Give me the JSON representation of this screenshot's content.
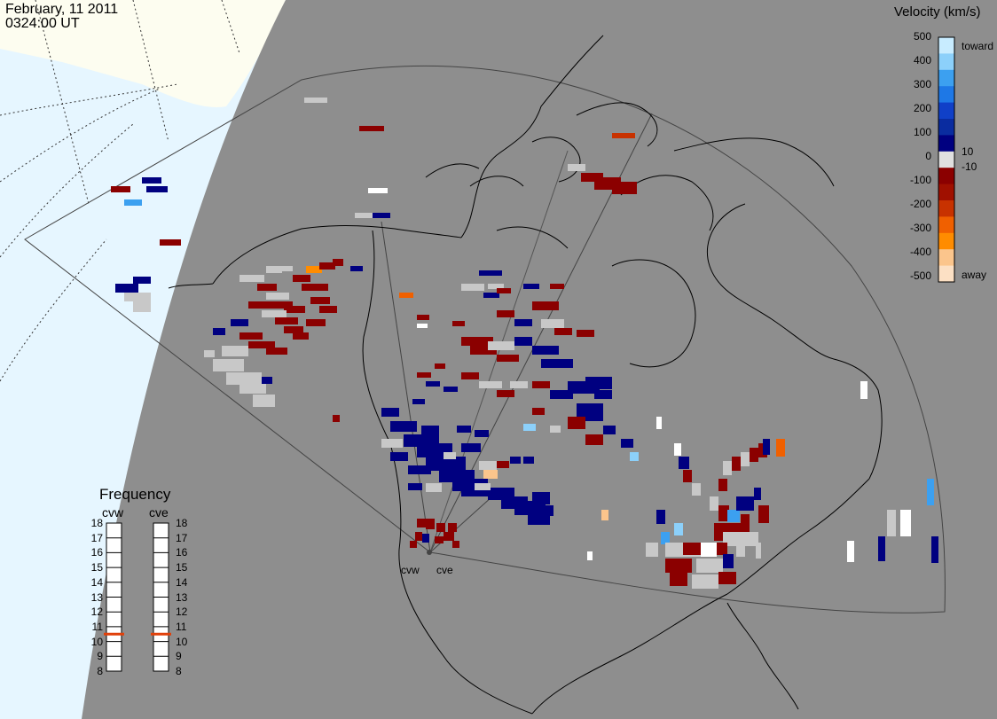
{
  "header": {
    "date": "February, 11 2011",
    "time": "0324:00 UT"
  },
  "radar_sites": [
    {
      "code": "cvw",
      "label": "cvw"
    },
    {
      "code": "cve",
      "label": "cve"
    }
  ],
  "velocity_scale": {
    "title": "Velocity (km/s)",
    "ticks": [
      "500",
      "400",
      "300",
      "200",
      "100",
      "0",
      "-100",
      "-200",
      "-300",
      "-400",
      "-500"
    ],
    "inner_labels": [
      "10",
      "-10"
    ],
    "toward_label": "toward",
    "away_label": "away",
    "colors": [
      "#fce0c4",
      "#fbc58c",
      "#ff8c00",
      "#f06000",
      "#c83200",
      "#a01000",
      "#8b0000",
      "#e0e0e0",
      "#000080",
      "#0a2ca0",
      "#1040c8",
      "#1e78e6",
      "#3ca0f0",
      "#8cd0fa",
      "#c8ecff"
    ]
  },
  "frequency_panel": {
    "title": "Frequency",
    "columns": [
      {
        "label": "cvw",
        "selected_mhz": 10.5
      },
      {
        "label": "cve",
        "selected_mhz": 10.5
      }
    ],
    "ticks": [
      "18",
      "17",
      "16",
      "15",
      "14",
      "13",
      "12",
      "11",
      "10",
      "9",
      "8"
    ],
    "marker_color": "#e0400a"
  },
  "map_colors": {
    "ocean": "#e6f6ff",
    "land_unlit": "#fdfdf0",
    "night_shade": "#8e8e8e",
    "ground_scatter": "#c8c8c8",
    "coastline": "#000000"
  }
}
